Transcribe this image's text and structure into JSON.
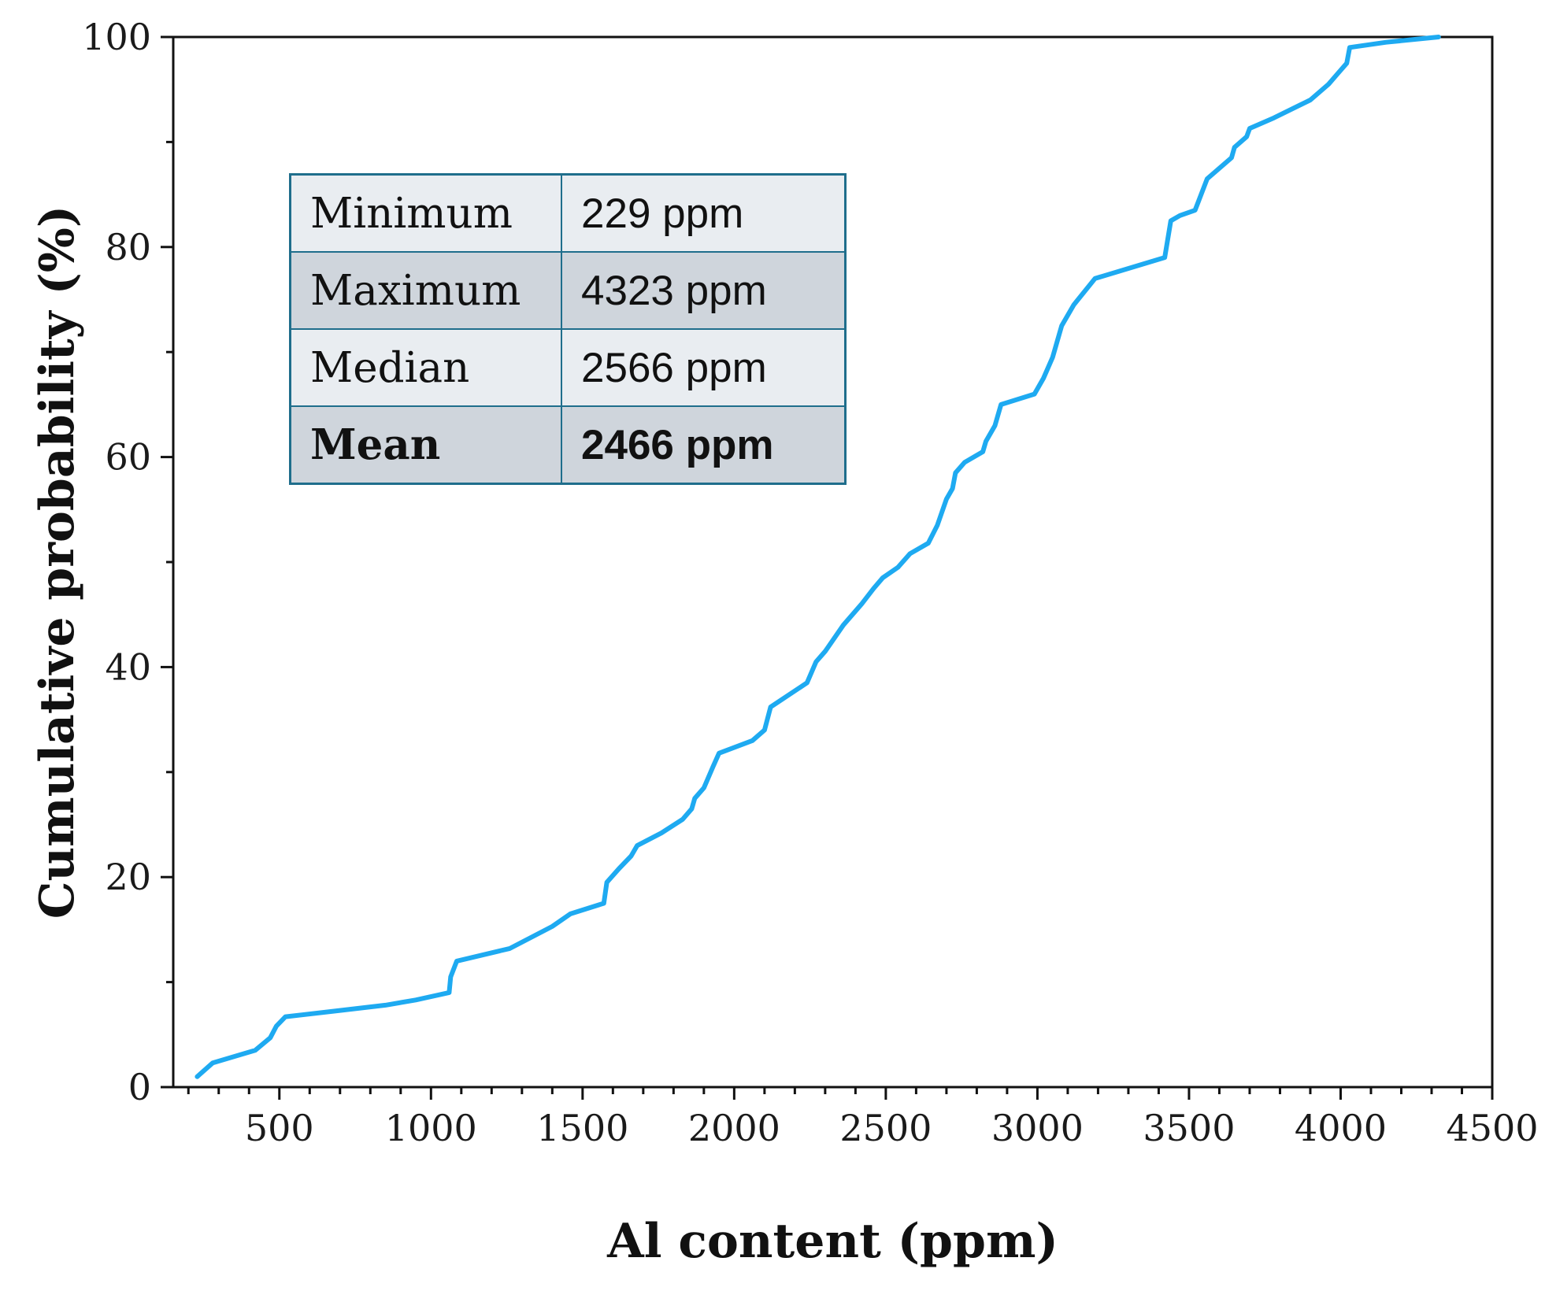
{
  "chart_data": {
    "type": "line",
    "title": "",
    "xlabel": "Al content (ppm)",
    "ylabel": "Cumulative probability (%)",
    "xlim": [
      150,
      4500
    ],
    "ylim": [
      0,
      100
    ],
    "x_ticks": [
      500,
      1000,
      1500,
      2000,
      2500,
      3000,
      3500,
      4000,
      4500
    ],
    "y_ticks": [
      0,
      20,
      40,
      60,
      80,
      100
    ],
    "x_minor_tick_step": 100,
    "y_minor_tick_step": 10,
    "grid": false,
    "line_color": "#1eaaf1",
    "series": [
      {
        "name": "Cumulative probability",
        "points": [
          [
            229,
            1
          ],
          [
            280,
            2.3
          ],
          [
            420,
            3.5
          ],
          [
            470,
            4.7
          ],
          [
            490,
            5.8
          ],
          [
            520,
            6.7
          ],
          [
            700,
            7.3
          ],
          [
            850,
            7.8
          ],
          [
            950,
            8.3
          ],
          [
            1060,
            9.0
          ],
          [
            1065,
            10.5
          ],
          [
            1085,
            12.0
          ],
          [
            1260,
            13.2
          ],
          [
            1400,
            15.3
          ],
          [
            1460,
            16.5
          ],
          [
            1570,
            17.5
          ],
          [
            1580,
            19.5
          ],
          [
            1620,
            20.8
          ],
          [
            1660,
            22.0
          ],
          [
            1680,
            23.0
          ],
          [
            1760,
            24.2
          ],
          [
            1830,
            25.5
          ],
          [
            1860,
            26.5
          ],
          [
            1870,
            27.5
          ],
          [
            1900,
            28.5
          ],
          [
            1930,
            30.5
          ],
          [
            1950,
            31.8
          ],
          [
            2060,
            33.0
          ],
          [
            2100,
            34.0
          ],
          [
            2120,
            36.2
          ],
          [
            2240,
            38.5
          ],
          [
            2270,
            40.5
          ],
          [
            2300,
            41.5
          ],
          [
            2360,
            44.0
          ],
          [
            2420,
            46.0
          ],
          [
            2460,
            47.5
          ],
          [
            2490,
            48.5
          ],
          [
            2540,
            49.5
          ],
          [
            2580,
            50.8
          ],
          [
            2640,
            51.8
          ],
          [
            2670,
            53.5
          ],
          [
            2700,
            56.0
          ],
          [
            2720,
            57.0
          ],
          [
            2730,
            58.5
          ],
          [
            2760,
            59.5
          ],
          [
            2820,
            60.5
          ],
          [
            2830,
            61.5
          ],
          [
            2860,
            63.0
          ],
          [
            2880,
            65.0
          ],
          [
            2990,
            66.0
          ],
          [
            3020,
            67.5
          ],
          [
            3050,
            69.5
          ],
          [
            3080,
            72.5
          ],
          [
            3120,
            74.5
          ],
          [
            3190,
            77.0
          ],
          [
            3420,
            79.0
          ],
          [
            3440,
            82.5
          ],
          [
            3470,
            83.0
          ],
          [
            3520,
            83.5
          ],
          [
            3560,
            86.5
          ],
          [
            3620,
            88.0
          ],
          [
            3640,
            88.5
          ],
          [
            3650,
            89.5
          ],
          [
            3690,
            90.5
          ],
          [
            3700,
            91.3
          ],
          [
            3780,
            92.3
          ],
          [
            3900,
            94.0
          ],
          [
            3960,
            95.5
          ],
          [
            3990,
            96.5
          ],
          [
            4020,
            97.5
          ],
          [
            4030,
            99.0
          ],
          [
            4150,
            99.5
          ],
          [
            4323,
            100
          ]
        ]
      }
    ]
  },
  "stats_table": {
    "rows": [
      {
        "label": "Minimum",
        "value": "229 ppm"
      },
      {
        "label": "Maximum",
        "value": "4323 ppm"
      },
      {
        "label": "Median",
        "value": "2566 ppm"
      },
      {
        "label": "Mean",
        "value": "2466 ppm"
      }
    ]
  }
}
